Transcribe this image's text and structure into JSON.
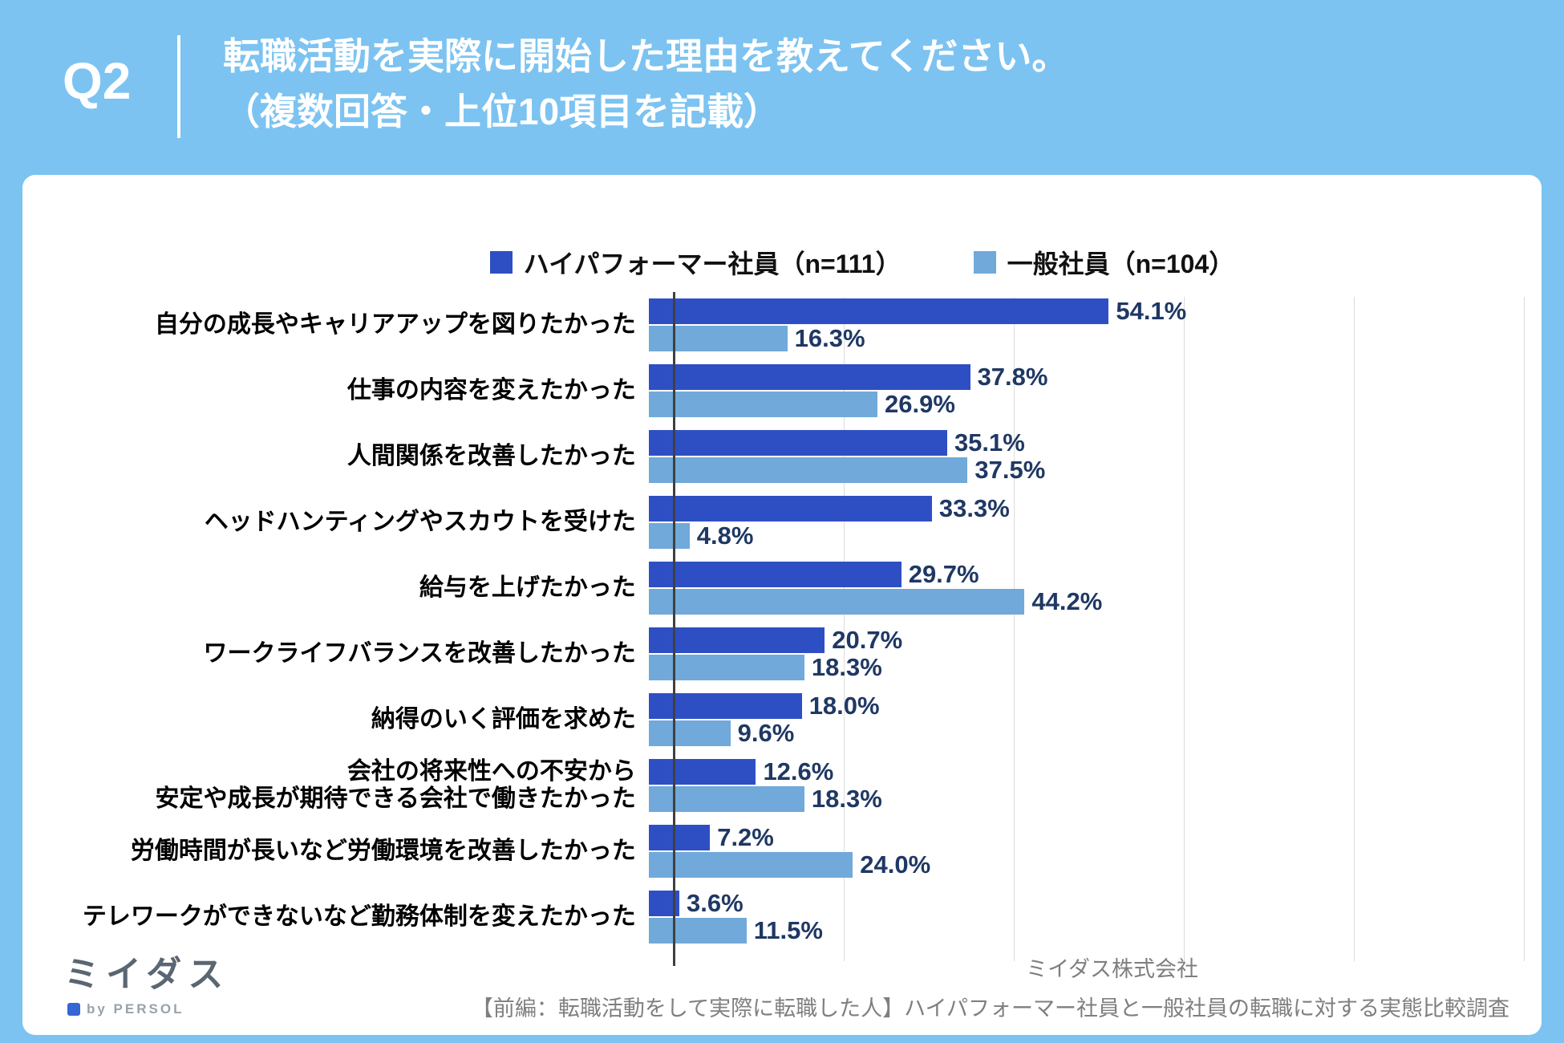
{
  "header": {
    "question_label": "Q2",
    "title_line1": "転職活動を実際に開始した理由を教えてください。",
    "title_line2": "（複数回答・上位10項目を記載）"
  },
  "legend": {
    "items": [
      {
        "label": "ハイパフォーマー社員（n=111）",
        "color": "#2e4fc4"
      },
      {
        "label": "一般社員（n=104）",
        "color": "#70a9da"
      }
    ]
  },
  "chart_data": {
    "type": "bar",
    "orientation": "horizontal",
    "value_suffix": "%",
    "xlim": [
      0,
      100
    ],
    "gridline_step": 20,
    "grid": true,
    "legend_position": "top",
    "categories": [
      "自分の成長やキャリアアップを図りたかった",
      "仕事の内容を変えたかった",
      "人間関係を改善したかった",
      "ヘッドハンティングやスカウトを受けた",
      "給与を上げたかった",
      "ワークライフバランスを改善したかった",
      "納得のいく評価を求めた",
      "会社の将来性への不安から\n安定や成長が期待できる会社で働きたかった",
      "労働時間が長いなど労働環境を改善したかった",
      "テレワークができないなど勤務体制を変えたかった"
    ],
    "series": [
      {
        "name": "ハイパフォーマー社員（n=111）",
        "color": "#2e4fc4",
        "values": [
          54.1,
          37.8,
          35.1,
          33.3,
          29.7,
          20.7,
          18.0,
          12.6,
          7.2,
          3.6
        ]
      },
      {
        "name": "一般社員（n=104）",
        "color": "#70a9da",
        "values": [
          16.3,
          26.9,
          37.5,
          4.8,
          44.2,
          18.3,
          9.6,
          18.3,
          24.0,
          11.5
        ]
      }
    ],
    "value_label_color": "#1f3864"
  },
  "footer": {
    "logo_text": "ミイダス",
    "logo_byline": "by PERSOL",
    "company": "ミイダス株式会社",
    "caption": "【前編：転職活動をして実際に転職した人】ハイパフォーマー社員と一般社員の転職に対する実態比較調査"
  }
}
